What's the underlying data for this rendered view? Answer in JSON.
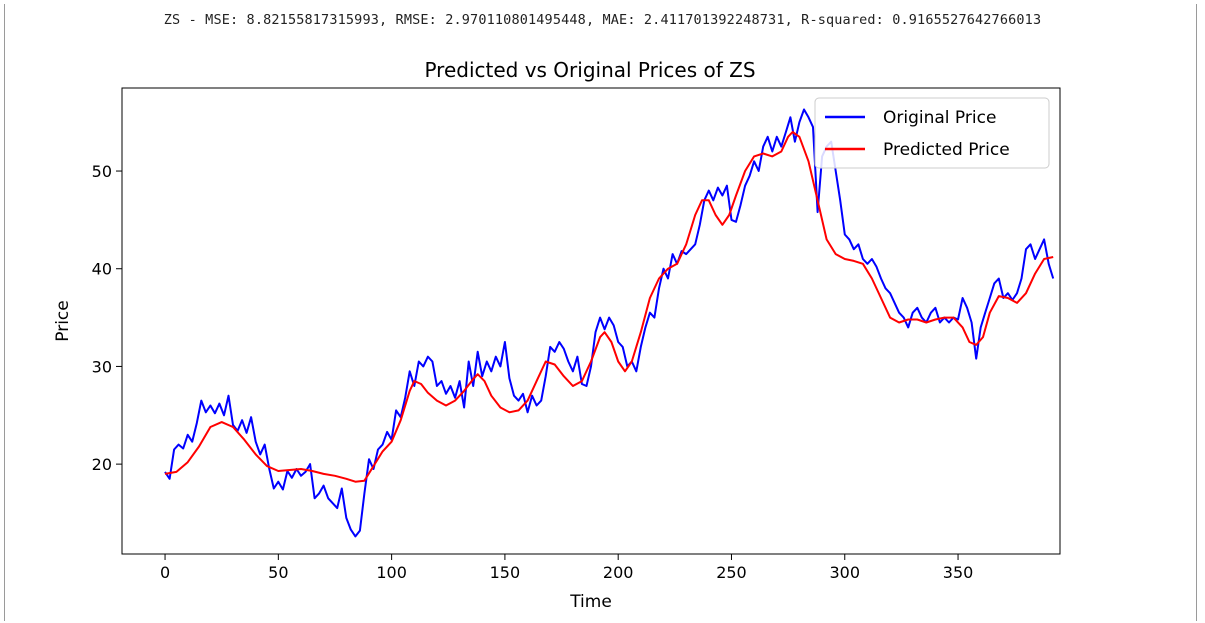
{
  "notebook_output": {
    "metrics_line": "ZS - MSE: 8.82155817315993, RMSE: 2.970110801495448, MAE: 2.411701392248731, R-squared: 0.9165527642766013"
  },
  "chart_data": {
    "type": "line",
    "title": "Predicted vs Original Prices of ZS",
    "xlabel": "Time",
    "ylabel": "Price",
    "xlim": [
      -19,
      395
    ],
    "ylim": [
      10.8,
      58.5
    ],
    "xticks": [
      0,
      50,
      100,
      150,
      200,
      250,
      300,
      350
    ],
    "yticks": [
      20,
      30,
      40,
      50
    ],
    "grid": false,
    "legend_position": "upper right",
    "series": [
      {
        "name": "Original Price",
        "color": "#0000ff",
        "points": [
          [
            0,
            19.2
          ],
          [
            2,
            18.5
          ],
          [
            4,
            21.5
          ],
          [
            6,
            22.0
          ],
          [
            8,
            21.6
          ],
          [
            10,
            23.0
          ],
          [
            12,
            22.3
          ],
          [
            14,
            24.2
          ],
          [
            16,
            26.5
          ],
          [
            18,
            25.3
          ],
          [
            20,
            26.0
          ],
          [
            22,
            25.2
          ],
          [
            24,
            26.2
          ],
          [
            26,
            25.0
          ],
          [
            28,
            27.0
          ],
          [
            30,
            24.0
          ],
          [
            32,
            23.4
          ],
          [
            34,
            24.5
          ],
          [
            36,
            23.2
          ],
          [
            38,
            24.8
          ],
          [
            40,
            22.3
          ],
          [
            42,
            21.0
          ],
          [
            44,
            22.0
          ],
          [
            46,
            19.5
          ],
          [
            48,
            17.5
          ],
          [
            50,
            18.2
          ],
          [
            52,
            17.4
          ],
          [
            54,
            19.3
          ],
          [
            56,
            18.6
          ],
          [
            58,
            19.5
          ],
          [
            60,
            18.8
          ],
          [
            62,
            19.2
          ],
          [
            64,
            20.0
          ],
          [
            66,
            16.5
          ],
          [
            68,
            17.0
          ],
          [
            70,
            17.8
          ],
          [
            72,
            16.5
          ],
          [
            74,
            16.0
          ],
          [
            76,
            15.5
          ],
          [
            78,
            17.5
          ],
          [
            80,
            14.5
          ],
          [
            82,
            13.3
          ],
          [
            84,
            12.6
          ],
          [
            86,
            13.2
          ],
          [
            88,
            17.0
          ],
          [
            90,
            20.5
          ],
          [
            92,
            19.5
          ],
          [
            94,
            21.5
          ],
          [
            96,
            22.0
          ],
          [
            98,
            23.3
          ],
          [
            100,
            22.5
          ],
          [
            102,
            25.5
          ],
          [
            104,
            24.8
          ],
          [
            106,
            26.8
          ],
          [
            108,
            29.5
          ],
          [
            110,
            28.0
          ],
          [
            112,
            30.5
          ],
          [
            114,
            30.0
          ],
          [
            116,
            31.0
          ],
          [
            118,
            30.5
          ],
          [
            120,
            28.0
          ],
          [
            122,
            28.5
          ],
          [
            124,
            27.2
          ],
          [
            126,
            28.0
          ],
          [
            128,
            26.8
          ],
          [
            130,
            28.5
          ],
          [
            132,
            25.8
          ],
          [
            134,
            30.5
          ],
          [
            136,
            28.0
          ],
          [
            138,
            31.5
          ],
          [
            140,
            29.0
          ],
          [
            142,
            30.5
          ],
          [
            144,
            29.5
          ],
          [
            146,
            31.0
          ],
          [
            148,
            30.0
          ],
          [
            150,
            32.5
          ],
          [
            152,
            28.8
          ],
          [
            154,
            27.0
          ],
          [
            156,
            26.5
          ],
          [
            158,
            27.2
          ],
          [
            160,
            25.3
          ],
          [
            162,
            27.0
          ],
          [
            164,
            26.0
          ],
          [
            166,
            26.5
          ],
          [
            168,
            29.0
          ],
          [
            170,
            32.0
          ],
          [
            172,
            31.5
          ],
          [
            174,
            32.5
          ],
          [
            176,
            31.8
          ],
          [
            178,
            30.5
          ],
          [
            180,
            29.5
          ],
          [
            182,
            31.0
          ],
          [
            184,
            28.2
          ],
          [
            186,
            28.0
          ],
          [
            188,
            30.0
          ],
          [
            190,
            33.5
          ],
          [
            192,
            35.0
          ],
          [
            194,
            33.8
          ],
          [
            196,
            35.0
          ],
          [
            198,
            34.2
          ],
          [
            200,
            32.5
          ],
          [
            202,
            32.0
          ],
          [
            204,
            30.0
          ],
          [
            206,
            30.5
          ],
          [
            208,
            29.5
          ],
          [
            210,
            32.0
          ],
          [
            212,
            34.0
          ],
          [
            214,
            35.5
          ],
          [
            216,
            35.0
          ],
          [
            218,
            38.0
          ],
          [
            220,
            40.0
          ],
          [
            222,
            39.0
          ],
          [
            224,
            41.5
          ],
          [
            226,
            40.5
          ],
          [
            228,
            41.8
          ],
          [
            230,
            41.5
          ],
          [
            232,
            42.0
          ],
          [
            234,
            42.5
          ],
          [
            236,
            44.5
          ],
          [
            238,
            47.0
          ],
          [
            240,
            48.0
          ],
          [
            242,
            47.0
          ],
          [
            244,
            48.3
          ],
          [
            246,
            47.5
          ],
          [
            248,
            48.5
          ],
          [
            250,
            45.0
          ],
          [
            252,
            44.8
          ],
          [
            254,
            46.5
          ],
          [
            256,
            48.5
          ],
          [
            258,
            49.5
          ],
          [
            260,
            51.0
          ],
          [
            262,
            50.0
          ],
          [
            264,
            52.5
          ],
          [
            266,
            53.5
          ],
          [
            268,
            52.0
          ],
          [
            270,
            53.5
          ],
          [
            272,
            52.5
          ],
          [
            274,
            54.0
          ],
          [
            276,
            55.5
          ],
          [
            278,
            53.0
          ],
          [
            280,
            55.0
          ],
          [
            282,
            56.3
          ],
          [
            284,
            55.5
          ],
          [
            286,
            54.5
          ],
          [
            288,
            45.8
          ],
          [
            290,
            51.5
          ],
          [
            292,
            52.5
          ],
          [
            294,
            53.0
          ],
          [
            296,
            50.0
          ],
          [
            298,
            47.0
          ],
          [
            300,
            43.5
          ],
          [
            302,
            43.0
          ],
          [
            304,
            42.0
          ],
          [
            306,
            42.5
          ],
          [
            308,
            41.0
          ],
          [
            310,
            40.5
          ],
          [
            312,
            41.0
          ],
          [
            314,
            40.2
          ],
          [
            316,
            39.0
          ],
          [
            318,
            38.0
          ],
          [
            320,
            37.5
          ],
          [
            322,
            36.5
          ],
          [
            324,
            35.5
          ],
          [
            326,
            35.0
          ],
          [
            328,
            34.0
          ],
          [
            330,
            35.5
          ],
          [
            332,
            36.0
          ],
          [
            334,
            35.0
          ],
          [
            336,
            34.5
          ],
          [
            338,
            35.5
          ],
          [
            340,
            36.0
          ],
          [
            342,
            34.5
          ],
          [
            344,
            35.0
          ],
          [
            346,
            34.5
          ],
          [
            348,
            35.0
          ],
          [
            350,
            34.8
          ],
          [
            352,
            37.0
          ],
          [
            354,
            36.0
          ],
          [
            356,
            34.5
          ],
          [
            358,
            30.8
          ],
          [
            360,
            34.0
          ],
          [
            362,
            35.5
          ],
          [
            364,
            37.0
          ],
          [
            366,
            38.5
          ],
          [
            368,
            39.0
          ],
          [
            370,
            37.0
          ],
          [
            372,
            37.5
          ],
          [
            374,
            36.8
          ],
          [
            376,
            37.5
          ],
          [
            378,
            39.0
          ],
          [
            380,
            42.0
          ],
          [
            382,
            42.5
          ],
          [
            384,
            41.0
          ],
          [
            386,
            42.0
          ],
          [
            388,
            43.0
          ],
          [
            390,
            40.5
          ],
          [
            392,
            39.0
          ]
        ]
      },
      {
        "name": "Predicted Price",
        "color": "#ff0000",
        "points": [
          [
            0,
            19.0
          ],
          [
            5,
            19.2
          ],
          [
            10,
            20.2
          ],
          [
            15,
            21.8
          ],
          [
            20,
            23.8
          ],
          [
            25,
            24.3
          ],
          [
            30,
            23.8
          ],
          [
            35,
            22.5
          ],
          [
            40,
            21.0
          ],
          [
            45,
            19.8
          ],
          [
            50,
            19.3
          ],
          [
            55,
            19.4
          ],
          [
            60,
            19.5
          ],
          [
            65,
            19.3
          ],
          [
            70,
            19.0
          ],
          [
            75,
            18.8
          ],
          [
            80,
            18.5
          ],
          [
            84,
            18.2
          ],
          [
            88,
            18.3
          ],
          [
            92,
            19.8
          ],
          [
            96,
            21.3
          ],
          [
            100,
            22.3
          ],
          [
            104,
            24.5
          ],
          [
            108,
            27.5
          ],
          [
            110,
            28.5
          ],
          [
            113,
            28.2
          ],
          [
            116,
            27.3
          ],
          [
            120,
            26.5
          ],
          [
            124,
            26.0
          ],
          [
            128,
            26.5
          ],
          [
            132,
            27.5
          ],
          [
            136,
            28.7
          ],
          [
            138,
            29.2
          ],
          [
            141,
            28.5
          ],
          [
            144,
            27.0
          ],
          [
            148,
            25.8
          ],
          [
            152,
            25.3
          ],
          [
            156,
            25.5
          ],
          [
            160,
            26.5
          ],
          [
            164,
            28.5
          ],
          [
            168,
            30.5
          ],
          [
            172,
            30.2
          ],
          [
            176,
            29.0
          ],
          [
            180,
            28.0
          ],
          [
            184,
            28.5
          ],
          [
            188,
            30.5
          ],
          [
            192,
            33.0
          ],
          [
            194,
            33.5
          ],
          [
            197,
            32.5
          ],
          [
            200,
            30.5
          ],
          [
            203,
            29.5
          ],
          [
            206,
            30.5
          ],
          [
            210,
            33.5
          ],
          [
            214,
            37.0
          ],
          [
            218,
            39.0
          ],
          [
            222,
            40.0
          ],
          [
            226,
            40.5
          ],
          [
            230,
            42.5
          ],
          [
            234,
            45.5
          ],
          [
            237,
            47.0
          ],
          [
            240,
            47.0
          ],
          [
            243,
            45.5
          ],
          [
            246,
            44.5
          ],
          [
            249,
            45.5
          ],
          [
            252,
            47.5
          ],
          [
            256,
            50.0
          ],
          [
            260,
            51.5
          ],
          [
            264,
            51.8
          ],
          [
            268,
            51.5
          ],
          [
            272,
            52.0
          ],
          [
            275,
            53.5
          ],
          [
            277,
            54.0
          ],
          [
            280,
            53.5
          ],
          [
            284,
            51.0
          ],
          [
            288,
            47.0
          ],
          [
            292,
            43.0
          ],
          [
            296,
            41.5
          ],
          [
            300,
            41.0
          ],
          [
            304,
            40.8
          ],
          [
            308,
            40.5
          ],
          [
            312,
            39.0
          ],
          [
            316,
            37.0
          ],
          [
            320,
            35.0
          ],
          [
            324,
            34.5
          ],
          [
            328,
            34.8
          ],
          [
            332,
            34.8
          ],
          [
            336,
            34.5
          ],
          [
            340,
            34.8
          ],
          [
            344,
            35.0
          ],
          [
            348,
            35.0
          ],
          [
            352,
            34.0
          ],
          [
            355,
            32.5
          ],
          [
            358,
            32.2
          ],
          [
            361,
            33.0
          ],
          [
            364,
            35.5
          ],
          [
            368,
            37.2
          ],
          [
            372,
            37.0
          ],
          [
            376,
            36.5
          ],
          [
            380,
            37.5
          ],
          [
            384,
            39.5
          ],
          [
            388,
            41.0
          ],
          [
            392,
            41.2
          ]
        ]
      }
    ]
  }
}
